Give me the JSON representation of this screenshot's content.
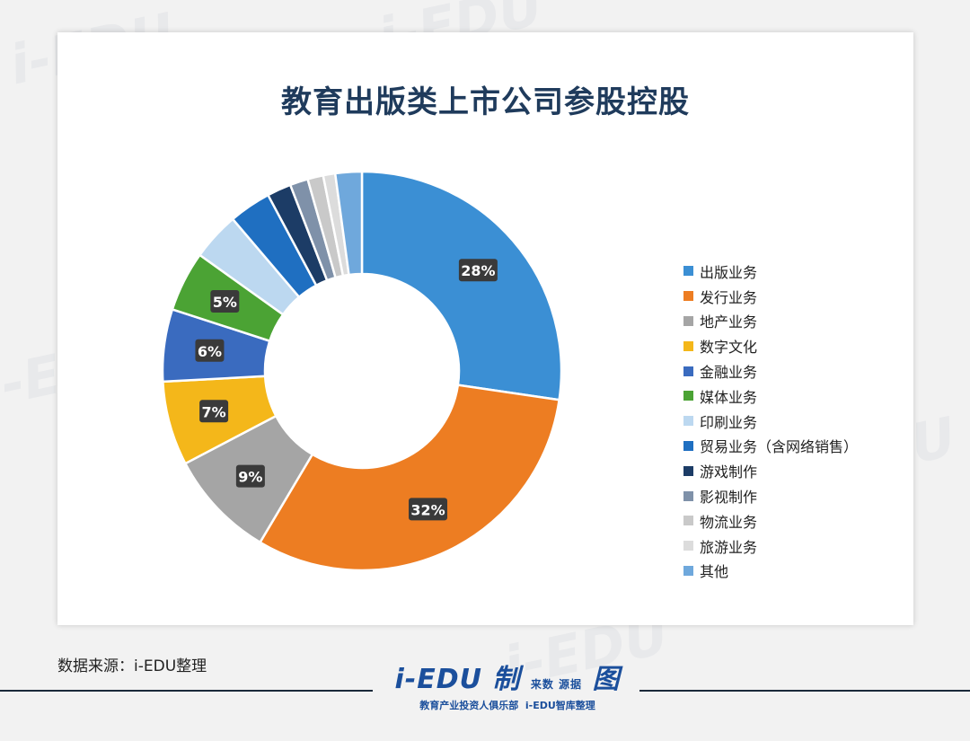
{
  "title": "教育出版类上市公司参股控股",
  "source_text": "数据来源：i-EDU整理",
  "logo": {
    "main": "i-EDU",
    "sub": "教育产业投资人俱乐部",
    "tagline": "i-EDU智库整理",
    "badge": "制",
    "badge2": "来数 源据",
    "badge3": "图"
  },
  "chart_data": {
    "type": "pie",
    "donut": true,
    "title": "教育出版类上市公司参股控股",
    "legend_position": "right",
    "series": [
      {
        "name": "出版业务",
        "value": 28,
        "label": "28%",
        "color": "#3b8fd4"
      },
      {
        "name": "发行业务",
        "value": 32,
        "label": "32%",
        "color": "#ed7d22"
      },
      {
        "name": "地产业务",
        "value": 9,
        "label": "9%",
        "color": "#a5a5a5"
      },
      {
        "name": "数字文化",
        "value": 7,
        "label": "7%",
        "color": "#f4b71a"
      },
      {
        "name": "金融业务",
        "value": 6,
        "label": "6%",
        "color": "#3a6bbf"
      },
      {
        "name": "媒体业务",
        "value": 5,
        "label": "5%",
        "color": "#4ba334"
      },
      {
        "name": "印刷业务",
        "value": 4,
        "label": "",
        "color": "#bcd8f0"
      },
      {
        "name": "贸易业务（含网络销售）",
        "value": 3.5,
        "label": "",
        "color": "#1f6fc1"
      },
      {
        "name": "游戏制作",
        "value": 2,
        "label": "",
        "color": "#1c3c66"
      },
      {
        "name": "影视制作",
        "value": 1.5,
        "label": "",
        "color": "#7f91a9"
      },
      {
        "name": "物流业务",
        "value": 1.3,
        "label": "",
        "color": "#c9c9c9"
      },
      {
        "name": "旅游业务",
        "value": 1,
        "label": "",
        "color": "#dcdcdc"
      },
      {
        "name": "其他",
        "value": 2.2,
        "label": "",
        "color": "#6fa8dc"
      }
    ]
  }
}
